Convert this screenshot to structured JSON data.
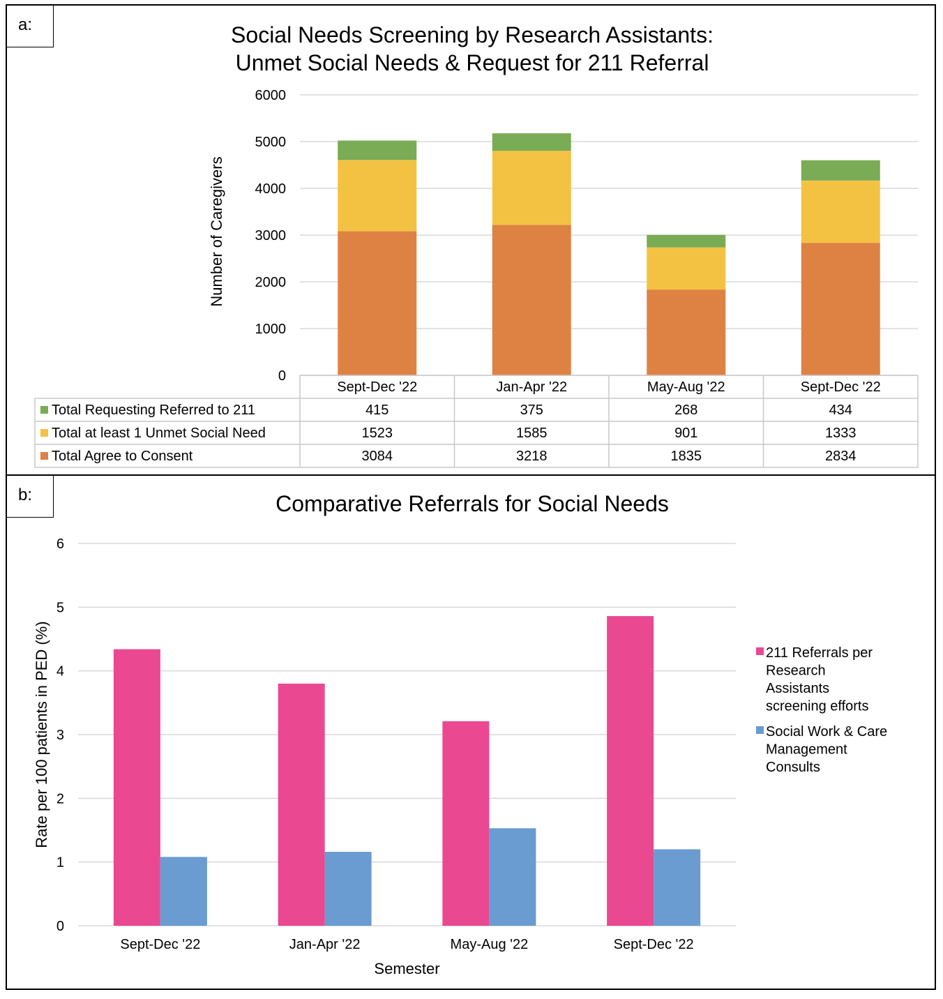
{
  "panels": {
    "a": {
      "tag": "a:",
      "title_line1": "Social Needs Screening by Research Assistants:",
      "title_line2": "Unmet Social Needs & Request for 211 Referral"
    },
    "b": {
      "tag": "b:",
      "title": "Comparative Referrals for Social Needs"
    }
  },
  "colors": {
    "green": "#7aab55",
    "yellow": "#f4c242",
    "orange": "#de8244",
    "pink": "#ea4891",
    "blue": "#6a9bd1",
    "grid": "#d9d9d9"
  },
  "chart_data": [
    {
      "type": "bar",
      "stacked": true,
      "title": "Social Needs Screening by Research Assistants: Unmet Social Needs & Request for 211 Referral",
      "ylabel": "Number of Caregivers",
      "ylim": [
        0,
        6000
      ],
      "yticks": [
        "0",
        "1000",
        "2000",
        "3000",
        "4000",
        "5000",
        "6000"
      ],
      "categories": [
        "Sept-Dec '22",
        "Jan-Apr '22",
        "May-Aug '22",
        "Sept-Dec '22"
      ],
      "series": [
        {
          "name": "Total Requesting Referred to 211",
          "values": [
            415,
            375,
            268,
            434
          ],
          "color": "#7aab55"
        },
        {
          "name": "Total at least 1 Unmet Social Need",
          "values": [
            1523,
            1585,
            901,
            1333
          ],
          "color": "#f4c242"
        },
        {
          "name": "Total Agree to Consent",
          "values": [
            3084,
            3218,
            1835,
            2834
          ],
          "color": "#de8244"
        }
      ],
      "data_table": true,
      "grid": true
    },
    {
      "type": "bar",
      "title": "Comparative Referrals for Social Needs",
      "xlabel": "Semester",
      "ylabel": "Rate per 100 patients in PED (%)",
      "ylim": [
        0,
        6
      ],
      "yticks": [
        "0",
        "1",
        "2",
        "3",
        "4",
        "5",
        "6"
      ],
      "categories": [
        "Sept-Dec '22",
        "Jan-Apr '22",
        "May-Aug '22",
        "Sept-Dec '22"
      ],
      "series": [
        {
          "name": "211 Referrals per Research Assistants screening efforts",
          "values": [
            4.34,
            3.8,
            3.21,
            4.86
          ],
          "color": "#ea4891"
        },
        {
          "name": "Social Work & Care Management Consults",
          "values": [
            1.08,
            1.16,
            1.53,
            1.2
          ],
          "color": "#6a9bd1"
        }
      ],
      "legend": "right",
      "grid": true
    }
  ]
}
